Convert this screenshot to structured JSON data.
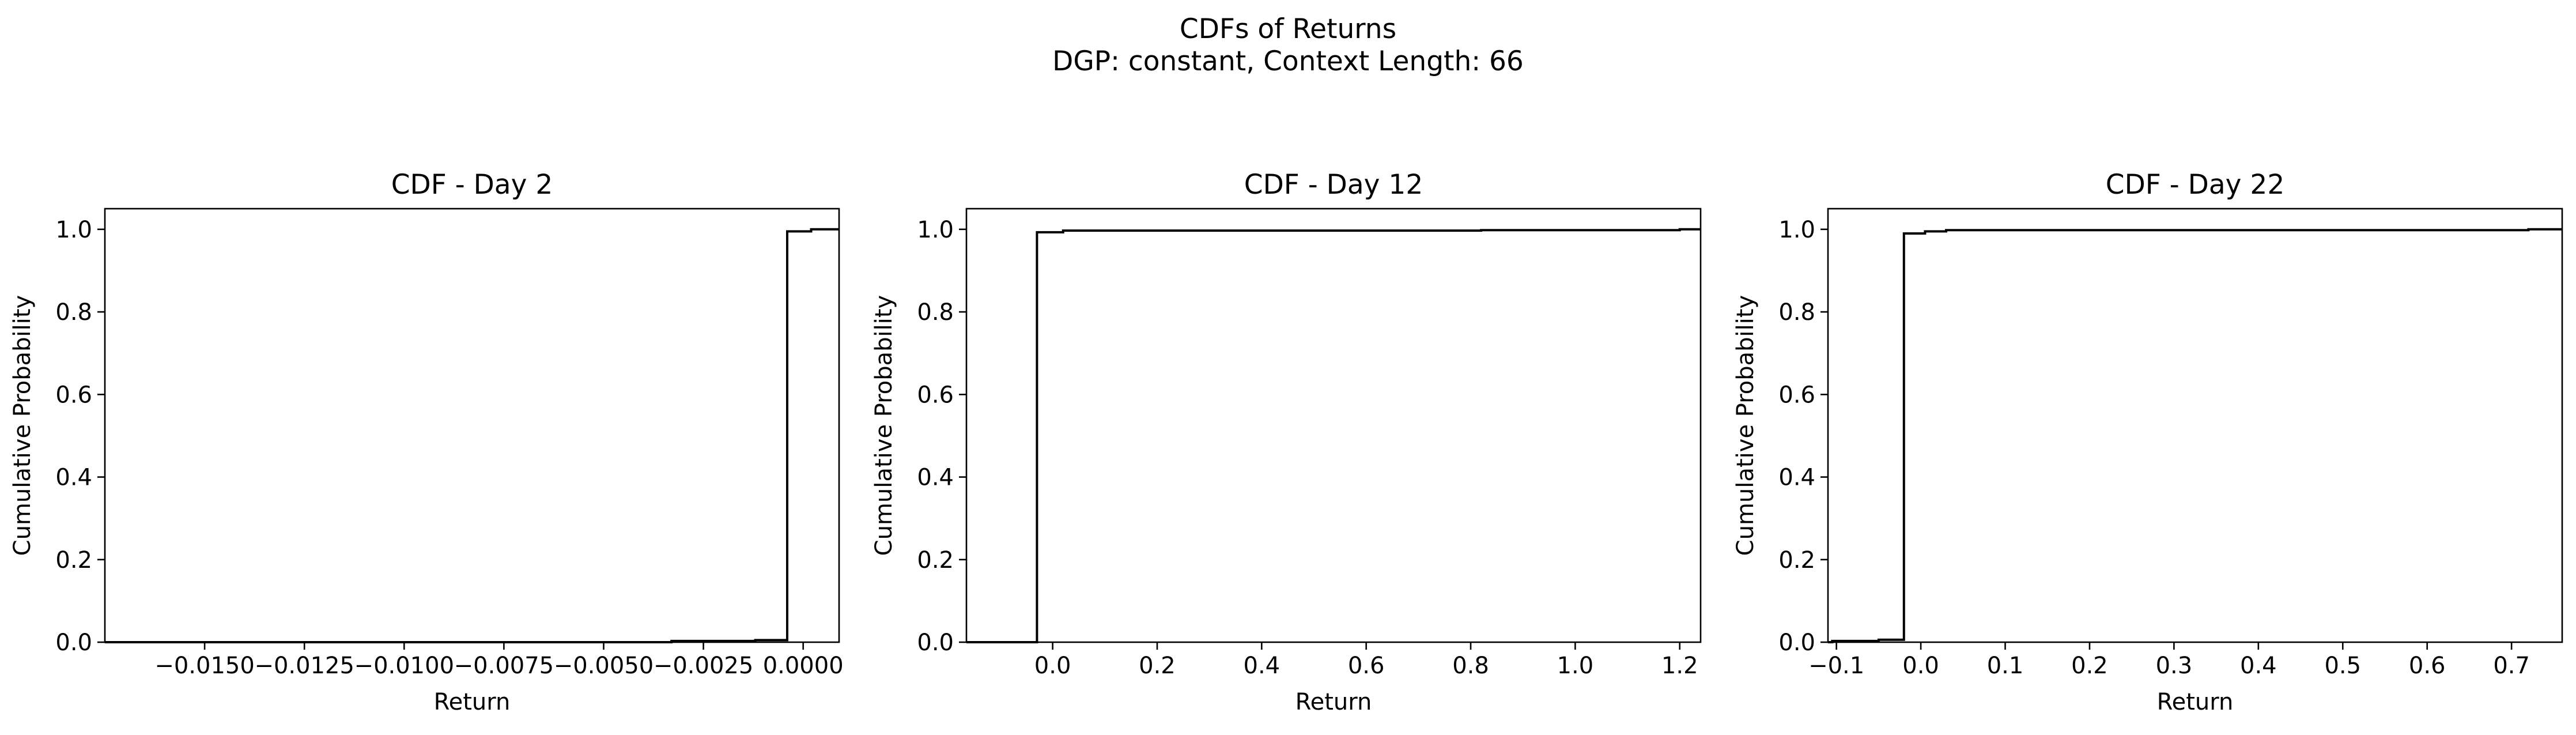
{
  "figure": {
    "title_line1": "CDFs of Returns",
    "title_line2": "DGP: constant, Context Length: 66"
  },
  "chart_data": [
    {
      "type": "line",
      "subtype": "step-cdf",
      "title": "CDF - Day 2",
      "xlabel": "Return",
      "ylabel": "Cumulative Probability",
      "xlim": [
        -0.0175,
        0.0009
      ],
      "ylim": [
        -0.0,
        1.05
      ],
      "xticks": [
        -0.015,
        -0.0125,
        -0.01,
        -0.0075,
        -0.005,
        -0.0025,
        0.0
      ],
      "xtick_labels": [
        "−0.0150",
        "−0.0125",
        "−0.0100",
        "−0.0075",
        "−0.0050",
        "−0.0025",
        "0.0000"
      ],
      "yticks": [
        0.0,
        0.2,
        0.4,
        0.6,
        0.8,
        1.0
      ],
      "ytick_labels": [
        "0.0",
        "0.2",
        "0.4",
        "0.6",
        "0.8",
        "1.0"
      ],
      "grid": false,
      "color": "#000000",
      "points": [
        [
          -0.0175,
          0.0
        ],
        [
          -0.0033,
          0.0
        ],
        [
          -0.0033,
          0.003
        ],
        [
          -0.0012,
          0.003
        ],
        [
          -0.0012,
          0.005
        ],
        [
          -0.0004,
          0.005
        ],
        [
          -0.0004,
          0.995
        ],
        [
          0.0002,
          0.995
        ],
        [
          0.0002,
          1.0
        ],
        [
          0.0009,
          1.0
        ]
      ]
    },
    {
      "type": "line",
      "subtype": "step-cdf",
      "title": "CDF - Day 12",
      "xlabel": "Return",
      "ylabel": "Cumulative Probability",
      "xlim": [
        -0.165,
        1.24
      ],
      "ylim": [
        -0.0,
        1.05
      ],
      "xticks": [
        0.0,
        0.2,
        0.4,
        0.6,
        0.8,
        1.0,
        1.2
      ],
      "xtick_labels": [
        "0.0",
        "0.2",
        "0.4",
        "0.6",
        "0.8",
        "1.0",
        "1.2"
      ],
      "yticks": [
        0.0,
        0.2,
        0.4,
        0.6,
        0.8,
        1.0
      ],
      "ytick_labels": [
        "0.0",
        "0.2",
        "0.4",
        "0.6",
        "0.8",
        "1.0"
      ],
      "grid": false,
      "color": "#000000",
      "points": [
        [
          -0.165,
          0.0
        ],
        [
          -0.03,
          0.0
        ],
        [
          -0.03,
          0.993
        ],
        [
          0.02,
          0.993
        ],
        [
          0.02,
          0.997
        ],
        [
          0.82,
          0.997
        ],
        [
          0.82,
          0.998
        ],
        [
          1.2,
          0.998
        ],
        [
          1.2,
          1.0
        ],
        [
          1.24,
          1.0
        ]
      ]
    },
    {
      "type": "line",
      "subtype": "step-cdf",
      "title": "CDF - Day 22",
      "xlabel": "Return",
      "ylabel": "Cumulative Probability",
      "xlim": [
        -0.11,
        0.76
      ],
      "ylim": [
        -0.0,
        1.05
      ],
      "xticks": [
        -0.1,
        0.0,
        0.1,
        0.2,
        0.3,
        0.4,
        0.5,
        0.6,
        0.7
      ],
      "xtick_labels": [
        "−0.1",
        "0.0",
        "0.1",
        "0.2",
        "0.3",
        "0.4",
        "0.5",
        "0.6",
        "0.7"
      ],
      "yticks": [
        0.0,
        0.2,
        0.4,
        0.6,
        0.8,
        1.0
      ],
      "ytick_labels": [
        "0.0",
        "0.2",
        "0.4",
        "0.6",
        "0.8",
        "1.0"
      ],
      "grid": false,
      "color": "#000000",
      "points": [
        [
          -0.11,
          0.0
        ],
        [
          -0.105,
          0.0
        ],
        [
          -0.105,
          0.003
        ],
        [
          -0.05,
          0.003
        ],
        [
          -0.05,
          0.006
        ],
        [
          -0.02,
          0.006
        ],
        [
          -0.02,
          0.99
        ],
        [
          0.005,
          0.99
        ],
        [
          0.005,
          0.995
        ],
        [
          0.03,
          0.995
        ],
        [
          0.03,
          0.998
        ],
        [
          0.72,
          0.998
        ],
        [
          0.72,
          1.0
        ],
        [
          0.76,
          1.0
        ]
      ]
    }
  ]
}
